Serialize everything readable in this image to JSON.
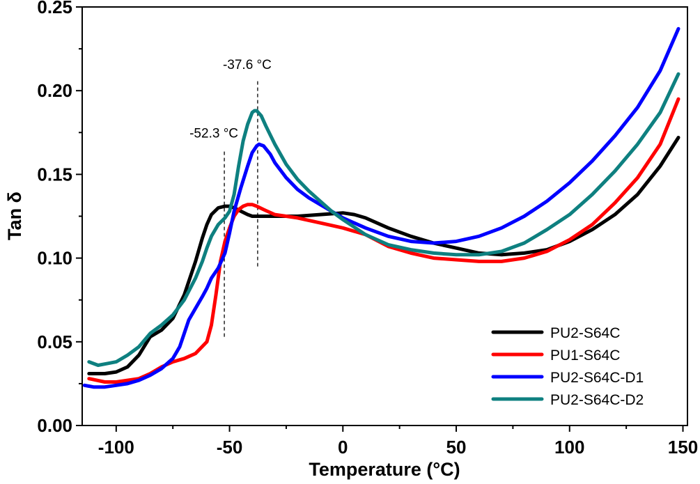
{
  "chart_data": {
    "type": "line",
    "title": "",
    "xlabel": "Temperature (°C)",
    "ylabel": "Tan δ",
    "xlim": [
      -115,
      152
    ],
    "ylim": [
      0.0,
      0.25
    ],
    "xticks": [
      -100,
      -50,
      0,
      50,
      100,
      150
    ],
    "xtick_labels": [
      "-100",
      "-50",
      "0",
      "50",
      "100",
      "150"
    ],
    "yticks": [
      0.0,
      0.05,
      0.1,
      0.15,
      0.2,
      0.25
    ],
    "ytick_labels": [
      "0.00",
      "0.05",
      "0.10",
      "0.15",
      "0.20",
      "0.25"
    ],
    "grid": false,
    "legend_position": "bottom-right",
    "series": [
      {
        "name": "PU2-S64C",
        "color": "#000000",
        "x": [
          -112,
          -105,
          -100,
          -95,
          -90,
          -85,
          -80,
          -75,
          -70,
          -65,
          -62,
          -60,
          -58,
          -55,
          -52,
          -50,
          -48,
          -45,
          -42,
          -40,
          -35,
          -30,
          -20,
          -10,
          0,
          5,
          10,
          20,
          30,
          40,
          50,
          60,
          70,
          80,
          90,
          100,
          110,
          120,
          130,
          140,
          148
        ],
        "y": [
          0.031,
          0.031,
          0.032,
          0.035,
          0.042,
          0.053,
          0.057,
          0.064,
          0.078,
          0.098,
          0.112,
          0.12,
          0.126,
          0.13,
          0.131,
          0.131,
          0.13,
          0.128,
          0.126,
          0.125,
          0.125,
          0.125,
          0.125,
          0.126,
          0.127,
          0.126,
          0.124,
          0.118,
          0.113,
          0.109,
          0.106,
          0.103,
          0.102,
          0.103,
          0.105,
          0.11,
          0.117,
          0.126,
          0.138,
          0.155,
          0.172
        ]
      },
      {
        "name": "PU1-S64C",
        "color": "#ff0000",
        "x": [
          -112,
          -105,
          -100,
          -95,
          -90,
          -85,
          -80,
          -75,
          -70,
          -65,
          -60,
          -58,
          -56,
          -54,
          -52,
          -50,
          -48,
          -46,
          -44,
          -42,
          -40,
          -38,
          -35,
          -30,
          -20,
          -10,
          0,
          10,
          20,
          30,
          40,
          50,
          60,
          70,
          80,
          90,
          100,
          110,
          120,
          130,
          140,
          148
        ],
        "y": [
          0.028,
          0.026,
          0.026,
          0.027,
          0.028,
          0.031,
          0.035,
          0.038,
          0.04,
          0.043,
          0.05,
          0.06,
          0.078,
          0.098,
          0.11,
          0.118,
          0.125,
          0.129,
          0.131,
          0.132,
          0.132,
          0.131,
          0.129,
          0.126,
          0.124,
          0.121,
          0.118,
          0.114,
          0.107,
          0.103,
          0.1,
          0.099,
          0.098,
          0.098,
          0.1,
          0.104,
          0.111,
          0.12,
          0.133,
          0.148,
          0.168,
          0.195
        ]
      },
      {
        "name": "PU2-S64C-D1",
        "color": "#0000ff",
        "x": [
          -114,
          -110,
          -105,
          -100,
          -95,
          -90,
          -85,
          -80,
          -75,
          -72,
          -70,
          -68,
          -65,
          -62,
          -60,
          -58,
          -55,
          -52,
          -50,
          -48,
          -45,
          -42,
          -40,
          -38,
          -37,
          -35,
          -32,
          -30,
          -25,
          -20,
          -15,
          -10,
          -5,
          0,
          10,
          20,
          30,
          40,
          50,
          60,
          70,
          80,
          90,
          100,
          110,
          120,
          130,
          140,
          148
        ],
        "y": [
          0.024,
          0.023,
          0.023,
          0.024,
          0.025,
          0.027,
          0.03,
          0.034,
          0.04,
          0.047,
          0.055,
          0.063,
          0.07,
          0.077,
          0.082,
          0.088,
          0.094,
          0.103,
          0.115,
          0.128,
          0.142,
          0.155,
          0.163,
          0.167,
          0.168,
          0.167,
          0.162,
          0.157,
          0.148,
          0.141,
          0.136,
          0.132,
          0.128,
          0.124,
          0.118,
          0.113,
          0.11,
          0.109,
          0.11,
          0.113,
          0.118,
          0.125,
          0.134,
          0.145,
          0.158,
          0.173,
          0.19,
          0.212,
          0.237
        ]
      },
      {
        "name": "PU2-S64C-D2",
        "color": "#0e8080",
        "x": [
          -112,
          -108,
          -104,
          -100,
          -95,
          -90,
          -85,
          -80,
          -75,
          -70,
          -65,
          -62,
          -60,
          -58,
          -55,
          -52,
          -50,
          -48,
          -46,
          -44,
          -42,
          -40,
          -39,
          -38,
          -36,
          -34,
          -30,
          -25,
          -20,
          -15,
          -10,
          -5,
          0,
          10,
          20,
          30,
          40,
          50,
          60,
          70,
          80,
          90,
          100,
          110,
          120,
          130,
          140,
          148
        ],
        "y": [
          0.038,
          0.036,
          0.037,
          0.038,
          0.042,
          0.047,
          0.055,
          0.06,
          0.066,
          0.075,
          0.088,
          0.098,
          0.106,
          0.113,
          0.12,
          0.124,
          0.128,
          0.138,
          0.155,
          0.17,
          0.18,
          0.187,
          0.188,
          0.188,
          0.185,
          0.179,
          0.168,
          0.156,
          0.147,
          0.14,
          0.134,
          0.128,
          0.123,
          0.114,
          0.108,
          0.105,
          0.103,
          0.102,
          0.102,
          0.104,
          0.109,
          0.117,
          0.126,
          0.138,
          0.152,
          0.168,
          0.187,
          0.21
        ]
      }
    ],
    "annotations": [
      {
        "text": "-52.3 °C",
        "x": -52.3,
        "line_y": [
          0.053,
          0.165
        ],
        "label_y": 0.172
      },
      {
        "text": "-37.6 °C",
        "x": -37.6,
        "line_y": [
          0.095,
          0.207
        ],
        "label_y": 0.213
      }
    ]
  }
}
